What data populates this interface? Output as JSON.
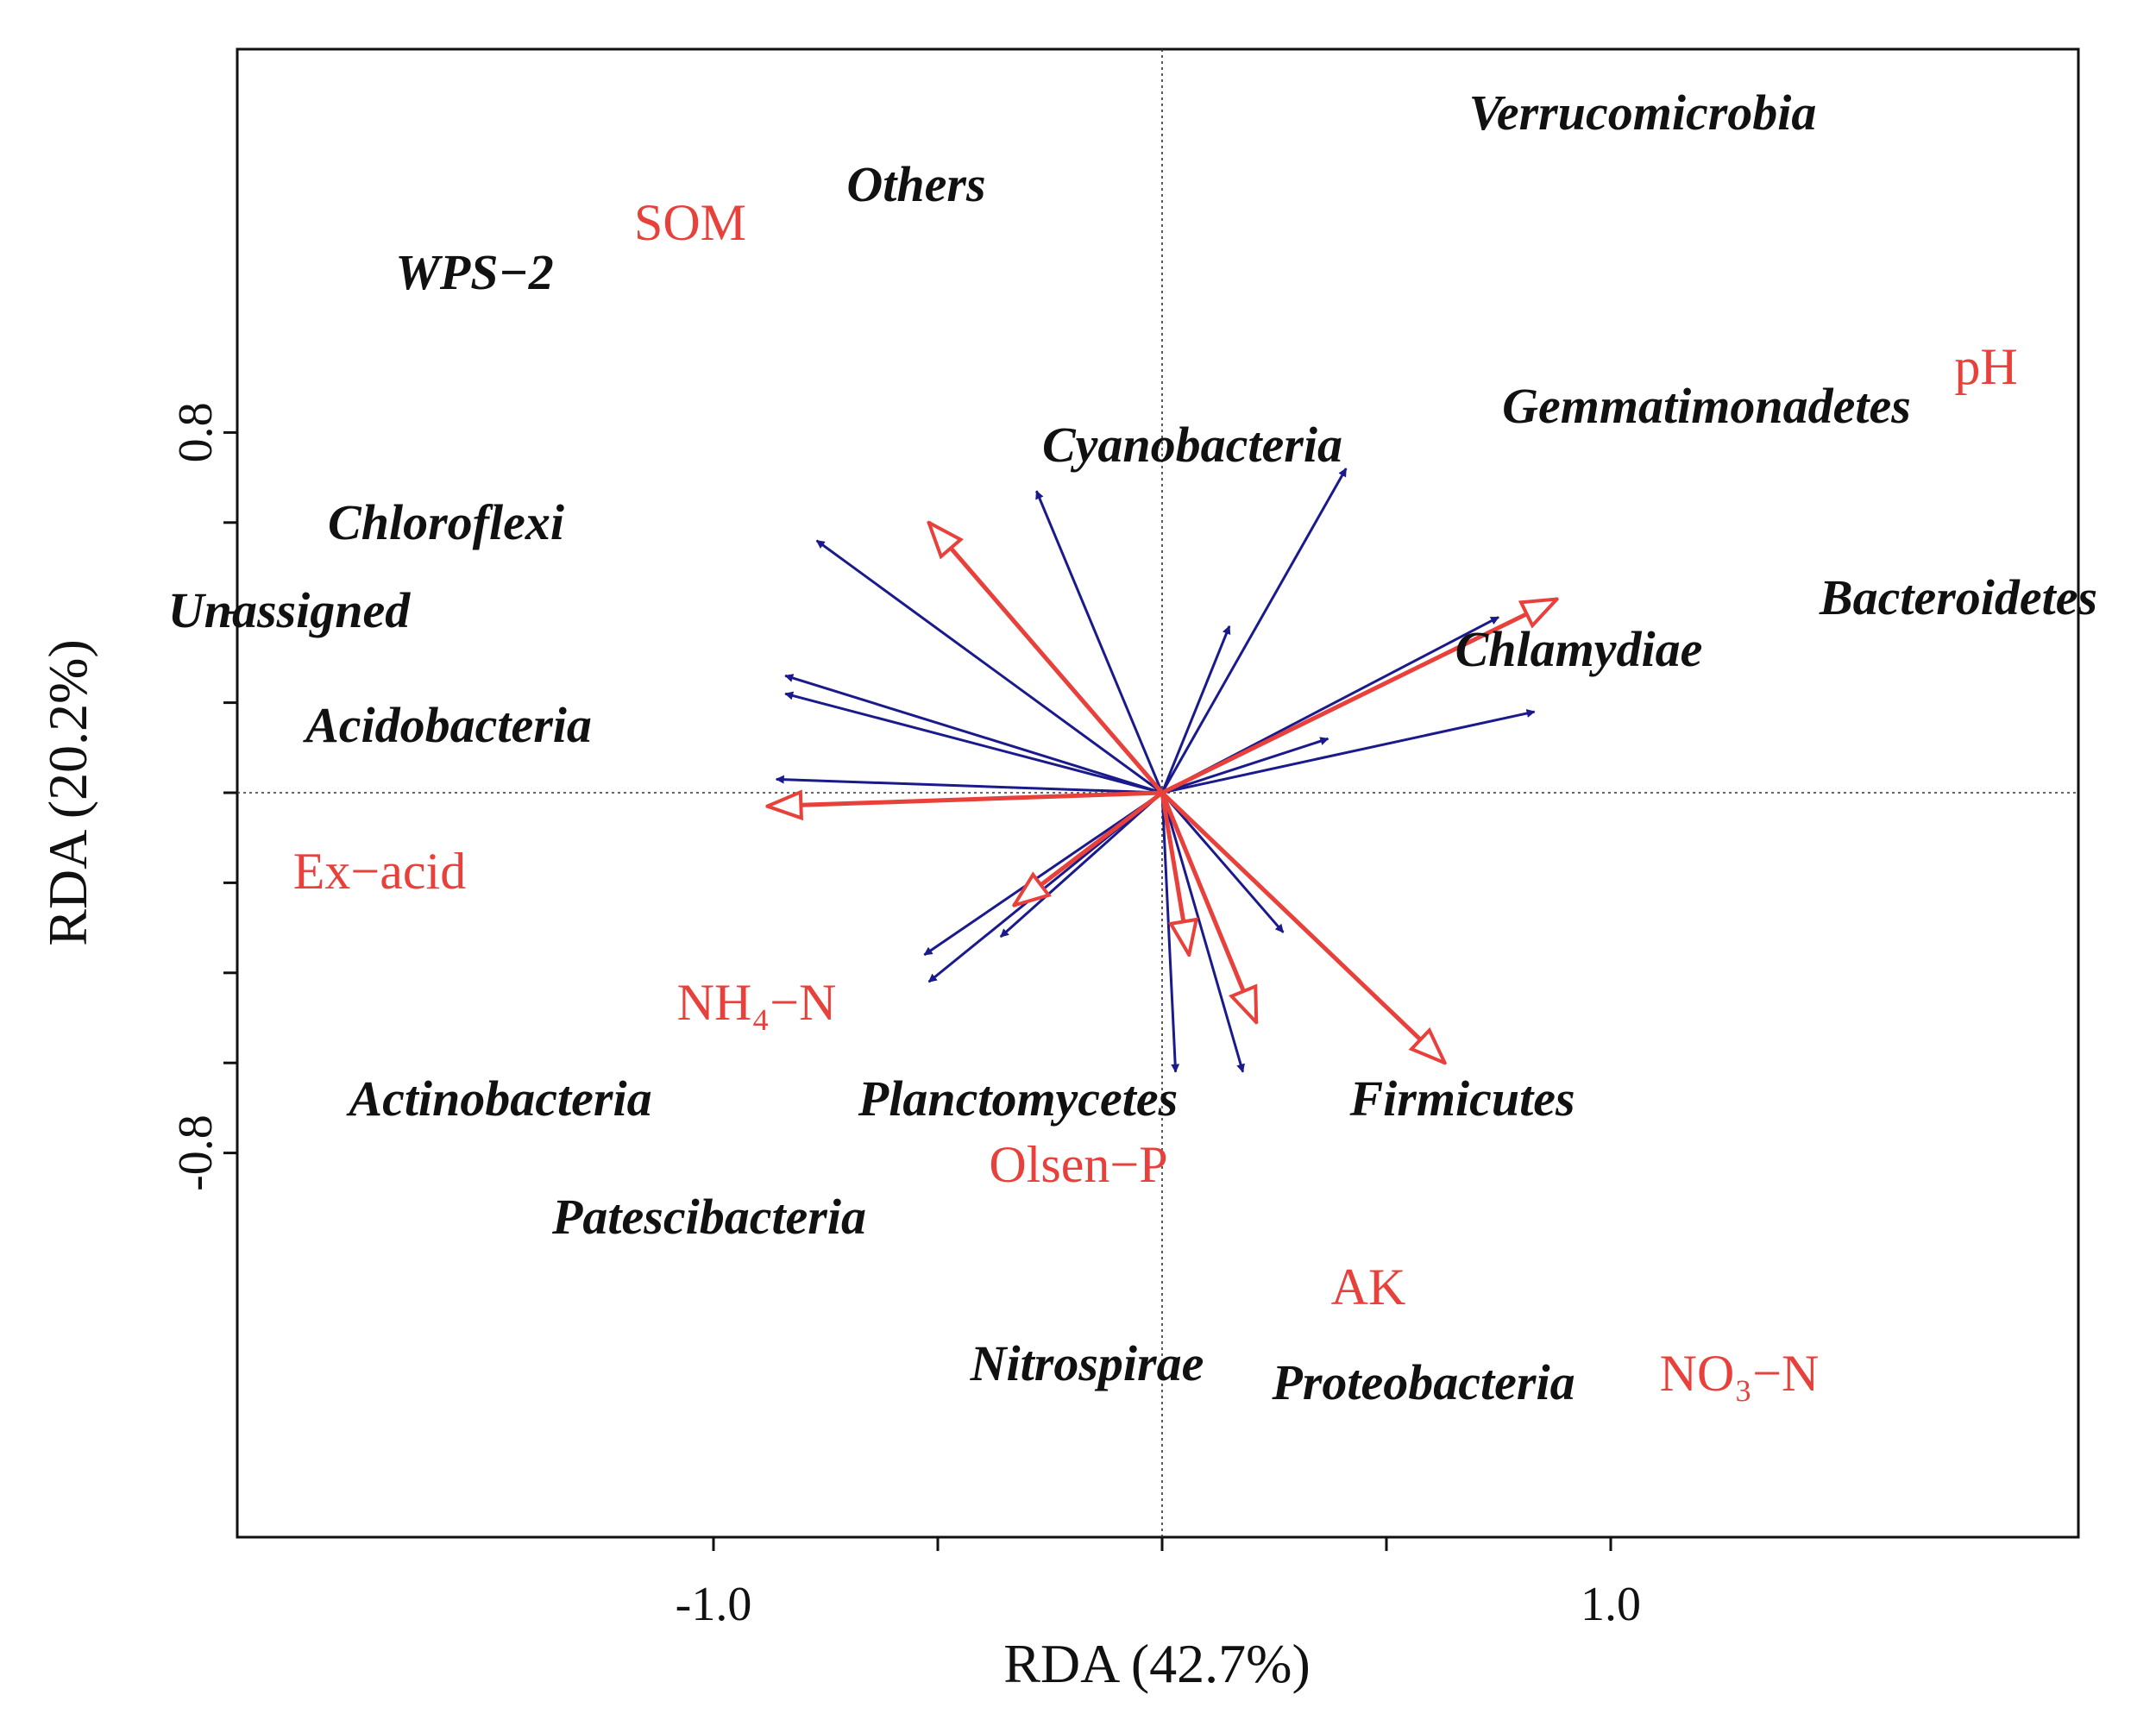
{
  "chart_data": {
    "type": "scatter",
    "subtype": "rda-biplot",
    "title": "",
    "xlabel": "RDA (42.7%)",
    "ylabel": "RDA (20.2%)",
    "xlim": [
      -1.05,
      1.05
    ],
    "ylim": [
      -0.82,
      0.84
    ],
    "x_ticks": [
      -1.0,
      -0.5,
      0,
      0.5,
      1.0
    ],
    "x_tick_labels": [
      "-1.0",
      "",
      "",
      "",
      "1.0"
    ],
    "y_ticks": [
      -0.8,
      -0.6,
      -0.4,
      -0.2,
      0,
      0.2,
      0.4,
      0.6,
      0.8
    ],
    "y_tick_labels": [
      "-0.8",
      "",
      "",
      "",
      "",
      "",
      "",
      "",
      "0.8"
    ],
    "reference_lines": "dotted lines at x = 0 and y = 0",
    "grid": false,
    "legend": "none",
    "colors": {
      "species": "#1a1a8c",
      "environment": "#e8403a",
      "text": "#111111"
    },
    "series": [
      {
        "kind": "species-arrows",
        "arrowhead": "filled",
        "color": "#1a1a8c",
        "points": [
          {
            "label": "Verrucomicrobia",
            "x": 0.41,
            "y": 0.72
          },
          {
            "label": "Others",
            "x": -0.28,
            "y": 0.67
          },
          {
            "label": "WPS−2",
            "x": -0.77,
            "y": 0.56
          },
          {
            "label": "Cyanobacteria",
            "x": 0.15,
            "y": 0.37
          },
          {
            "label": "Gemmatimonadetes",
            "x": 0.75,
            "y": 0.39
          },
          {
            "label": "Chloroflexi",
            "x": -0.84,
            "y": 0.26
          },
          {
            "label": "Unassigned",
            "x": -0.84,
            "y": 0.22
          },
          {
            "label": "Bacteroidetes",
            "x": 0.83,
            "y": 0.18
          },
          {
            "label": "Chlamydiae",
            "x": 0.37,
            "y": 0.12
          },
          {
            "label": "Acidobacteria",
            "x": -0.86,
            "y": 0.03
          },
          {
            "label": "Actinobacteria",
            "x": -0.53,
            "y": -0.36
          },
          {
            "label": "Planctomycetes",
            "x": -0.36,
            "y": -0.32
          },
          {
            "label": "Patescibacteria",
            "x": -0.52,
            "y": -0.42
          },
          {
            "label": "Firmicutes",
            "x": 0.27,
            "y": -0.31
          },
          {
            "label": "Nitrospirae",
            "x": 0.03,
            "y": -0.62
          },
          {
            "label": "Proteobacteria",
            "x": 0.18,
            "y": -0.62
          }
        ]
      },
      {
        "kind": "environment-arrows",
        "arrowhead": "open",
        "color": "#e8403a",
        "points": [
          {
            "label": "SOM",
            "x": -0.52,
            "y": 0.6
          },
          {
            "label": "pH",
            "x": 0.88,
            "y": 0.43
          },
          {
            "label": "Ex−acid",
            "x": -0.88,
            "y": -0.03
          },
          {
            "label": "NH₄−N",
            "x": -0.33,
            "y": -0.25
          },
          {
            "label": "Olsen−P",
            "x": 0.06,
            "y": -0.36
          },
          {
            "label": "AK",
            "x": 0.21,
            "y": -0.51
          },
          {
            "label": "NO₃−N",
            "x": 0.63,
            "y": -0.6
          }
        ]
      }
    ]
  }
}
